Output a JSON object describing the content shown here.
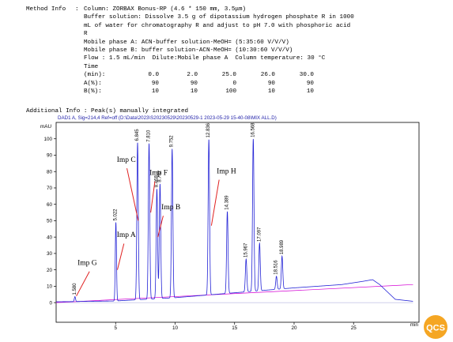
{
  "method": {
    "label": "Method Info",
    "colon": ":",
    "column": "Column: ZORBAX Bonus-RP (4.6 * 150 mm, 3.5μm)",
    "buffer_lines": [
      "Buffer solution: Dissolve 3.5 g of dipotassium hydrogen phosphate R in 1000",
      "mL of water for chromatography R and adjust to pH 7.0 with phosphoric acid",
      "R"
    ],
    "mobile_a": "Mobile phase A: ACN-buffer solution-MeOH= (5:35:60 V/V/V)",
    "mobile_b": "Mobile phase B: buffer solution-ACN-MeOH= (10:30:60 V/V/V)",
    "flow": "Flow : 1.5 mL/min  Dilute:Mobile phase A  Column temperature: 30 °C",
    "gradient": {
      "time_label": "Time (min):",
      "time": [
        "0.0",
        "2.0",
        "25.0",
        "26.0",
        "30.0"
      ],
      "a_label": "A(%):",
      "a": [
        "90",
        "90",
        "0",
        "90",
        "90"
      ],
      "b_label": "B(%):",
      "b": [
        "10",
        "10",
        "100",
        "10",
        "10"
      ]
    }
  },
  "additional_info": "Additional Info : Peak(s) manually integrated",
  "logo_text": "QCS",
  "colors": {
    "trace": "#2323d6",
    "baseline": "#d400d4",
    "annotation": "#e02020",
    "logo": "#f5a623"
  },
  "chart_data": {
    "type": "line",
    "header": "DAD1 A, Sig=214,4 Ref=off (D:\\Data\\2023\\S20230529\\20230529-1 2023-05-29 15-40-08\\MIX ALL.D)",
    "ylabel": "mAU",
    "xunit": "min",
    "xlim": [
      0,
      30.5
    ],
    "ylim": [
      -12,
      110
    ],
    "xticks": [
      5,
      10,
      15,
      20,
      25
    ],
    "yticks": [
      0,
      10,
      20,
      30,
      40,
      50,
      60,
      70,
      80,
      90,
      100
    ],
    "baseline": {
      "x": [
        0,
        30
      ],
      "y": [
        0,
        11
      ]
    },
    "drift": {
      "x": [
        0,
        5,
        10,
        15,
        20,
        24,
        25.8,
        26.6,
        27.2,
        28.5,
        30
      ],
      "y": [
        0.5,
        1,
        3,
        6,
        9,
        11,
        13,
        14,
        11,
        2,
        0.8
      ]
    },
    "peaks": [
      {
        "rt": 1.58,
        "label": "1.580",
        "height": 3,
        "width": 0.05
      },
      {
        "rt": 5.022,
        "label": "5.022",
        "height": 48,
        "width": 0.05
      },
      {
        "rt": 6.845,
        "label": "6.845",
        "height": 96,
        "width": 0.06
      },
      {
        "rt": 7.81,
        "label": "7.810",
        "height": 95,
        "width": 0.06
      },
      {
        "rt": 8.468,
        "label": "8.468",
        "height": 67,
        "width": 0.06
      },
      {
        "rt": 8.732,
        "label": "8.732",
        "height": 70,
        "width": 0.06
      },
      {
        "rt": 9.752,
        "label": "9.752",
        "height": 91,
        "width": 0.06
      },
      {
        "rt": 12.836,
        "label": "12.836",
        "height": 95,
        "width": 0.06
      },
      {
        "rt": 14.389,
        "label": "14.389",
        "height": 50,
        "width": 0.06
      },
      {
        "rt": 15.967,
        "label": "15.967",
        "height": 20,
        "width": 0.06
      },
      {
        "rt": 16.568,
        "label": "16.568",
        "height": 93,
        "width": 0.06
      },
      {
        "rt": 17.097,
        "label": "17.097",
        "height": 29,
        "width": 0.06
      },
      {
        "rt": 18.516,
        "label": "18.516",
        "height": 8,
        "width": 0.06
      },
      {
        "rt": 18.989,
        "label": "18.989",
        "height": 20,
        "width": 0.06
      }
    ],
    "annotations": [
      {
        "text": "Imp C",
        "text_x": 5.1,
        "text_y": 86,
        "line": [
          [
            5.95,
            82
          ],
          [
            6.9,
            50
          ]
        ]
      },
      {
        "text": "Imp F",
        "text_x": 7.85,
        "text_y": 78,
        "line": [
          [
            8.3,
            74
          ],
          [
            7.95,
            55
          ]
        ]
      },
      {
        "text": "Imp H",
        "text_x": 13.5,
        "text_y": 79,
        "line": [
          [
            13.7,
            75
          ],
          [
            13.05,
            47
          ]
        ]
      },
      {
        "text": "Imp B",
        "text_x": 8.85,
        "text_y": 57,
        "line": [
          [
            9.0,
            53
          ],
          [
            8.55,
            40
          ]
        ]
      },
      {
        "text": "Imp A",
        "text_x": 5.1,
        "text_y": 40,
        "line": [
          [
            5.7,
            36
          ],
          [
            5.15,
            20
          ]
        ]
      },
      {
        "text": "Imp G",
        "text_x": 1.8,
        "text_y": 23,
        "line": [
          [
            2.8,
            19
          ],
          [
            1.7,
            4
          ]
        ]
      }
    ]
  }
}
